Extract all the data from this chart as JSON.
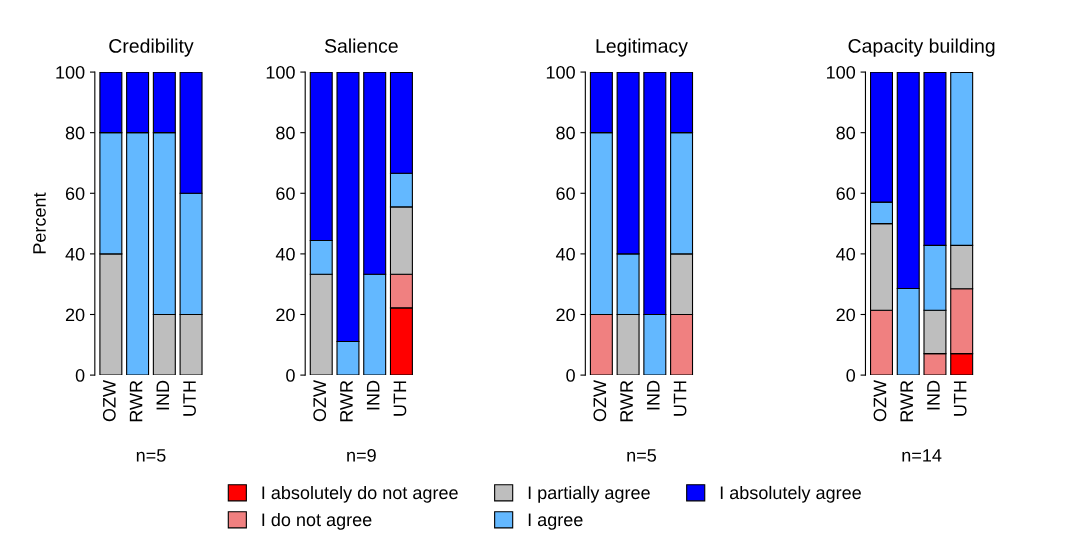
{
  "chart_data": [
    {
      "type": "bar",
      "stacked": true,
      "title": "Credibility",
      "ylabel": "Percent",
      "categories": [
        "OZW",
        "RWR",
        "IND",
        "UTH"
      ],
      "ylim": [
        0,
        100
      ],
      "yticks": [
        0,
        20,
        40,
        60,
        80,
        100
      ],
      "grid": false,
      "legend": "bottom",
      "annotations": [
        "n=5"
      ],
      "series": [
        {
          "name": "I absolutely do not agree",
          "color": "#ff0000",
          "values": [
            0,
            0,
            0,
            0
          ]
        },
        {
          "name": "I do not agree",
          "color": "#f08080",
          "values": [
            0,
            0,
            0,
            0
          ]
        },
        {
          "name": "I partially agree",
          "color": "#bebebe",
          "values": [
            40,
            0,
            20,
            20
          ]
        },
        {
          "name": "I agree",
          "color": "#63b8ff",
          "values": [
            40,
            80,
            60,
            40
          ]
        },
        {
          "name": "I absolutely agree",
          "color": "#0000ff",
          "values": [
            20,
            20,
            20,
            40
          ]
        }
      ]
    },
    {
      "type": "bar",
      "stacked": true,
      "title": "Salience",
      "categories": [
        "OZW",
        "RWR",
        "IND",
        "UTH"
      ],
      "ylim": [
        0,
        100
      ],
      "yticks": [
        0,
        20,
        40,
        60,
        80,
        100
      ],
      "grid": false,
      "annotations": [
        "n=9"
      ],
      "series": [
        {
          "color": "#ff0000",
          "values": [
            0,
            0,
            0,
            22.2
          ]
        },
        {
          "color": "#f08080",
          "values": [
            0,
            0,
            0,
            11.1
          ]
        },
        {
          "color": "#bebebe",
          "values": [
            33.3,
            0,
            0,
            22.2
          ]
        },
        {
          "color": "#63b8ff",
          "values": [
            11.1,
            11.1,
            33.3,
            11.1
          ]
        },
        {
          "color": "#0000ff",
          "values": [
            55.6,
            88.9,
            66.7,
            33.3
          ]
        }
      ]
    },
    {
      "type": "bar",
      "stacked": true,
      "title": "Legitimacy",
      "categories": [
        "OZW",
        "RWR",
        "IND",
        "UTH"
      ],
      "ylim": [
        0,
        100
      ],
      "yticks": [
        0,
        20,
        40,
        60,
        80,
        100
      ],
      "grid": false,
      "annotations": [
        "n=5"
      ],
      "series": [
        {
          "color": "#ff0000",
          "values": [
            0,
            0,
            0,
            0
          ]
        },
        {
          "color": "#f08080",
          "values": [
            20,
            0,
            0,
            20
          ]
        },
        {
          "color": "#bebebe",
          "values": [
            0,
            20,
            0,
            20
          ]
        },
        {
          "color": "#63b8ff",
          "values": [
            60,
            20,
            20,
            40
          ]
        },
        {
          "color": "#0000ff",
          "values": [
            20,
            60,
            80,
            20
          ]
        }
      ]
    },
    {
      "type": "bar",
      "stacked": true,
      "title": "Capacity building",
      "categories": [
        "OZW",
        "RWR",
        "IND",
        "UTH"
      ],
      "ylim": [
        0,
        100
      ],
      "yticks": [
        0,
        20,
        40,
        60,
        80,
        100
      ],
      "grid": false,
      "annotations": [
        "n=14"
      ],
      "series": [
        {
          "color": "#ff0000",
          "values": [
            0,
            0,
            0,
            7.1
          ]
        },
        {
          "color": "#f08080",
          "values": [
            21.4,
            0,
            7.1,
            21.4
          ]
        },
        {
          "color": "#bebebe",
          "values": [
            28.6,
            0,
            14.3,
            14.3
          ]
        },
        {
          "color": "#63b8ff",
          "values": [
            7.1,
            28.6,
            21.4,
            57.1
          ]
        },
        {
          "color": "#0000ff",
          "values": [
            42.9,
            71.4,
            57.1,
            0
          ]
        }
      ]
    }
  ]
}
